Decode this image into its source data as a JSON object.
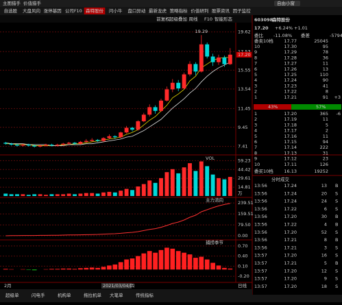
{
  "top_bar": {
    "items": [
      "主图猎手",
      "价值猎手"
    ],
    "search": "自由小窗"
  },
  "tabs": [
    "自选股",
    "大盘风向",
    "涨停基因",
    "公司F10",
    "森特股份",
    "问小牛",
    "盘口异动",
    "最新龙虎",
    "策略指标",
    "价值研判",
    "股票资讯",
    "因子监控"
  ],
  "active_tab": "森特股份",
  "toolbar": [
    "前复权",
    "超级叠加",
    "周线",
    "F10",
    "智能形态"
  ],
  "main_chart": {
    "ylim": [
      6.8,
      20.4
    ],
    "yticks": [
      19.62,
      17.53,
      15.55,
      13.54,
      11.45,
      9.45,
      7.41
    ],
    "last_price": {
      "value": 17.2,
      "label": "17.20"
    },
    "high_label": "19.29",
    "candles": [
      [
        7.8,
        7.7,
        7.9,
        7.6
      ],
      [
        7.7,
        7.6,
        7.8,
        7.5
      ],
      [
        7.6,
        7.5,
        7.7,
        7.4
      ],
      [
        7.5,
        7.6,
        7.7,
        7.4
      ],
      [
        7.6,
        7.5,
        7.7,
        7.4
      ],
      [
        7.5,
        7.4,
        7.6,
        7.3
      ],
      [
        7.4,
        7.5,
        7.6,
        7.3
      ],
      [
        7.5,
        7.6,
        7.7,
        7.4
      ],
      [
        7.6,
        7.5,
        7.7,
        7.4
      ],
      [
        7.5,
        7.6,
        7.7,
        7.4
      ],
      [
        7.6,
        7.7,
        7.8,
        7.5
      ],
      [
        7.7,
        7.8,
        7.9,
        7.6
      ],
      [
        7.8,
        7.7,
        7.9,
        7.6
      ],
      [
        7.7,
        7.9,
        8.0,
        7.6
      ],
      [
        7.9,
        8.0,
        8.2,
        7.8
      ],
      [
        8.0,
        8.1,
        8.3,
        7.9
      ],
      [
        8.1,
        8.0,
        8.2,
        7.9
      ],
      [
        8.0,
        8.3,
        8.4,
        7.9
      ],
      [
        8.3,
        8.5,
        8.7,
        8.2
      ],
      [
        8.5,
        8.4,
        8.6,
        8.2
      ],
      [
        8.4,
        8.9,
        9.0,
        8.3
      ],
      [
        8.9,
        9.4,
        9.6,
        8.8
      ],
      [
        9.4,
        9.2,
        9.5,
        9.0
      ],
      [
        9.2,
        10.1,
        10.2,
        9.1
      ],
      [
        10.1,
        10.8,
        11.0,
        10.0
      ],
      [
        10.8,
        11.6,
        11.9,
        10.6
      ],
      [
        11.6,
        11.2,
        11.8,
        10.9
      ],
      [
        11.2,
        12.3,
        12.5,
        11.1
      ],
      [
        12.3,
        13.5,
        13.8,
        12.2
      ],
      [
        13.5,
        14.2,
        14.6,
        13.2
      ],
      [
        14.2,
        13.6,
        14.5,
        13.3
      ],
      [
        13.6,
        15.1,
        15.3,
        13.5
      ],
      [
        15.1,
        16.2,
        16.5,
        14.9
      ],
      [
        16.2,
        15.4,
        16.4,
        15.0
      ],
      [
        15.4,
        18.3,
        19.29,
        15.3
      ],
      [
        18.3,
        17.0,
        18.5,
        16.8
      ],
      [
        17.0,
        16.4,
        17.3,
        16.0
      ],
      [
        16.4,
        16.9,
        17.2,
        16.1
      ],
      [
        16.9,
        16.19,
        17.1,
        15.9
      ],
      [
        16.19,
        17.2,
        17.9,
        16.1
      ]
    ],
    "ma": [
      {
        "color": "#e8d800",
        "values": [
          7.7,
          7.7,
          7.6,
          7.6,
          7.6,
          7.5,
          7.5,
          7.5,
          7.5,
          7.5,
          7.6,
          7.6,
          7.7,
          7.7,
          7.8,
          7.9,
          8.0,
          8.1,
          8.2,
          8.3,
          8.4,
          8.7,
          8.9,
          9.2,
          9.7,
          10.2,
          10.6,
          11.2,
          11.8,
          12.6,
          13.0,
          13.5,
          14.4,
          14.9,
          15.8,
          16.2,
          16.6,
          16.8,
          16.9,
          16.9
        ]
      },
      {
        "color": "#e0e0e0",
        "values": [
          7.8,
          7.7,
          7.7,
          7.7,
          7.6,
          7.6,
          7.6,
          7.6,
          7.5,
          7.5,
          7.5,
          7.6,
          7.6,
          7.6,
          7.7,
          7.7,
          7.8,
          7.9,
          8.0,
          8.1,
          8.2,
          8.4,
          8.5,
          8.8,
          9.1,
          9.5,
          9.9,
          10.3,
          10.9,
          11.5,
          12.0,
          12.5,
          13.1,
          13.6,
          14.3,
          14.9,
          15.4,
          15.8,
          16.1,
          16.4
        ]
      }
    ]
  },
  "vol_panel": {
    "label": "VOL",
    "unit": "万",
    "ylim": [
      0,
      62
    ],
    "yticks": [
      59.23,
      44.42,
      29.61,
      14.81
    ],
    "values": [
      4,
      3,
      3,
      3,
      2,
      3,
      3,
      2,
      3,
      3,
      3,
      4,
      3,
      4,
      5,
      5,
      4,
      6,
      7,
      6,
      9,
      12,
      10,
      16,
      20,
      26,
      22,
      30,
      40,
      45,
      38,
      48,
      55,
      42,
      58,
      50,
      36,
      30,
      28,
      32
    ]
  },
  "flow_panel": {
    "label": "主力流向",
    "ylim": [
      -10,
      260
    ],
    "yticks": [
      239.51,
      159.51,
      {
        "value": 79.5,
        "label": "79.50"
      },
      {
        "value": 0,
        "label": "0.00"
      }
    ],
    "values": [
      0,
      1,
      1,
      2,
      2,
      2,
      3,
      3,
      4,
      4,
      5,
      6,
      6,
      7,
      8,
      9,
      10,
      12,
      14,
      15,
      18,
      22,
      25,
      30,
      38,
      46,
      52,
      62,
      75,
      90,
      100,
      115,
      135,
      150,
      175,
      190,
      205,
      218,
      228,
      236
    ]
  },
  "season_panel": {
    "label": "捕捞季节",
    "ylim": [
      -0.3,
      0.8
    ],
    "yticks": [
      {
        "value": 0.7,
        "label": "0.70"
      },
      {
        "value": 0.4,
        "label": "0.40"
      },
      {
        "value": 0.1,
        "label": "0.10"
      },
      {
        "value": -0.2,
        "label": "-0.20"
      }
    ],
    "values": [
      0.02,
      0.01,
      0.0,
      0.01,
      -0.01,
      -0.02,
      0.0,
      0.01,
      0.02,
      0.02,
      0.03,
      0.03,
      0.02,
      0.04,
      0.05,
      0.06,
      0.05,
      0.08,
      0.12,
      0.15,
      0.22,
      0.3,
      0.33,
      0.4,
      0.48,
      0.55,
      0.5,
      0.58,
      0.65,
      0.62,
      0.55,
      0.5,
      0.45,
      0.35,
      0.38,
      0.3,
      0.2,
      0.12,
      0.05,
      0.03
    ]
  },
  "date_row": [
    "2月",
    "2021/03/04/四",
    "日线"
  ],
  "bottom_tabs": [
    "超级单",
    "闪电手",
    "机构单",
    "拖拉机单",
    "大笔单",
    "传统指标"
  ],
  "quote": {
    "code": "603098",
    "name": "森特股份",
    "price": "17.20",
    "change_pct": "+6.24%",
    "change": "+1.01",
    "ratio_row": [
      "委比",
      "-11.08%",
      "委差",
      "-5794"
    ],
    "sell_header": [
      "委卖10档",
      "17.77",
      "25045"
    ],
    "sell": [
      [
        "10",
        "17.30",
        "95"
      ],
      [
        "9",
        "17.29",
        "78"
      ],
      [
        "8",
        "17.28",
        "36"
      ],
      [
        "7",
        "17.27",
        "11"
      ],
      [
        "6",
        "17.26",
        "13"
      ],
      [
        "5",
        "17.25",
        "110"
      ],
      [
        "4",
        "17.24",
        "90"
      ],
      [
        "3",
        "17.23",
        "41"
      ],
      [
        "2",
        "17.22",
        "8"
      ],
      [
        "1",
        "17.21",
        "91",
        "+3"
      ]
    ],
    "ratio": {
      "values": [
        43,
        57
      ],
      "value_labels": [
        "43%",
        "57%"
      ]
    },
    "buy": [
      [
        "1",
        "17.20",
        "365",
        "-6"
      ],
      [
        "2",
        "17.19",
        "11"
      ],
      [
        "3",
        "17.18",
        "5"
      ],
      [
        "4",
        "17.17",
        "2"
      ],
      [
        "5",
        "17.16",
        "11"
      ],
      [
        "6",
        "17.15",
        "94"
      ],
      [
        "7",
        "17.14",
        "222"
      ],
      [
        "8",
        "17.13",
        "31"
      ],
      [
        "9",
        "17.12",
        "23"
      ],
      [
        "10",
        "17.11",
        "126"
      ]
    ],
    "buy_header": [
      "委买10档",
      "16.13",
      "19252"
    ],
    "trades_title": "分时成交",
    "trades": [
      [
        "13:56",
        "17.24",
        "13",
        "B"
      ],
      [
        "13:56",
        "17.24",
        "20",
        "S"
      ],
      [
        "13:56",
        "17.24",
        "24",
        "S"
      ],
      [
        "13:56",
        "17.22",
        "6",
        "S"
      ],
      [
        "13:56",
        "17.20",
        "30",
        "B"
      ],
      [
        "13:56",
        "17.22",
        "4",
        "B"
      ],
      [
        "13:56",
        "17.20",
        "52",
        "S"
      ],
      [
        "13:56",
        "17.21",
        "8",
        "B"
      ],
      [
        "13:56",
        "17.21",
        "3",
        "S"
      ],
      [
        "13:57",
        "17.20",
        "16",
        "S"
      ],
      [
        "13:57",
        "17.21",
        "5",
        "B"
      ],
      [
        "13:57",
        "17.20",
        "12",
        "S"
      ],
      [
        "13:57",
        "17.20",
        "9",
        "S"
      ],
      [
        "13:57",
        "17.20",
        "18",
        "S"
      ]
    ]
  }
}
